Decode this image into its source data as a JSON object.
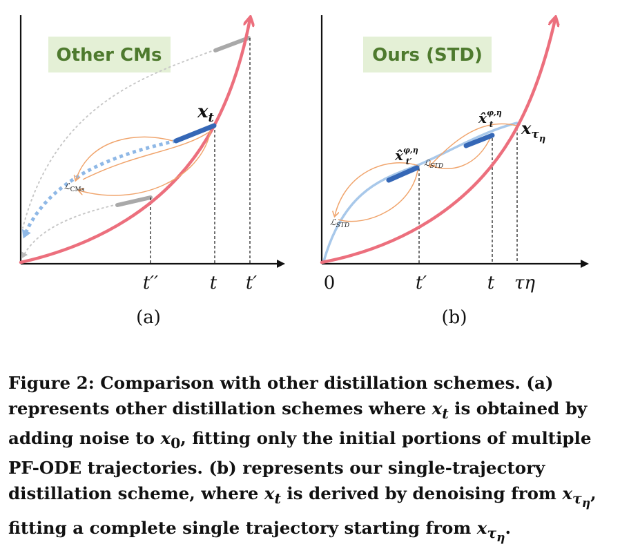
{
  "panel_a": {
    "title": "Other CMs",
    "point_label": "x",
    "point_sub": "t",
    "loss_label": "ℒ",
    "loss_sub": "CMs",
    "ticks": [
      "t′′",
      "t",
      "t′"
    ],
    "sublabel": "(a)"
  },
  "panel_b": {
    "title": "Ours (STD)",
    "point_label": "x",
    "point_sub": "τ",
    "point_subsub": "η",
    "est_t": "x̂",
    "est_t_sup": "φ,η",
    "est_t_sub": "t",
    "est_tp": "x̂",
    "est_tp_sup": "φ,η",
    "est_tp_sub": "t′",
    "loss_label": "ℒ",
    "loss_sub": "STD",
    "ticks": [
      "0",
      "t′",
      "t",
      "τη"
    ],
    "sublabel": "(b)"
  },
  "caption": {
    "label": "Figure 2:",
    "part1": " Comparison with other distillation schemes. (a) represents other distillation schemes where ",
    "xt1": "x",
    "xt1_sub": "t",
    "part2": " is obtained by adding noise to ",
    "x0": "x",
    "x0_sub": "0",
    "part3": ", fitting only the initial portions of multiple PF-ODE trajectories. (b) represents our single-trajectory distillation scheme, where ",
    "xt2": "x",
    "xt2_sub": "t",
    "part4": " is derived by denoising from ",
    "xtau1": "x",
    "xtau1_sub": "τ",
    "xtau1_subsub": "η",
    "part5": ", fitting a complete single trajectory starting from ",
    "xtau2": "x",
    "xtau2_sub": "τ",
    "xtau2_subsub": "η",
    "part6": "."
  },
  "colors": {
    "curve": "#ec6f7d",
    "blue": "#3567b6",
    "lightblue": "#a8c8ea",
    "orange": "#f0a46c",
    "title_bg": "#e4f0d6",
    "title_fg": "#4e7a2e"
  }
}
